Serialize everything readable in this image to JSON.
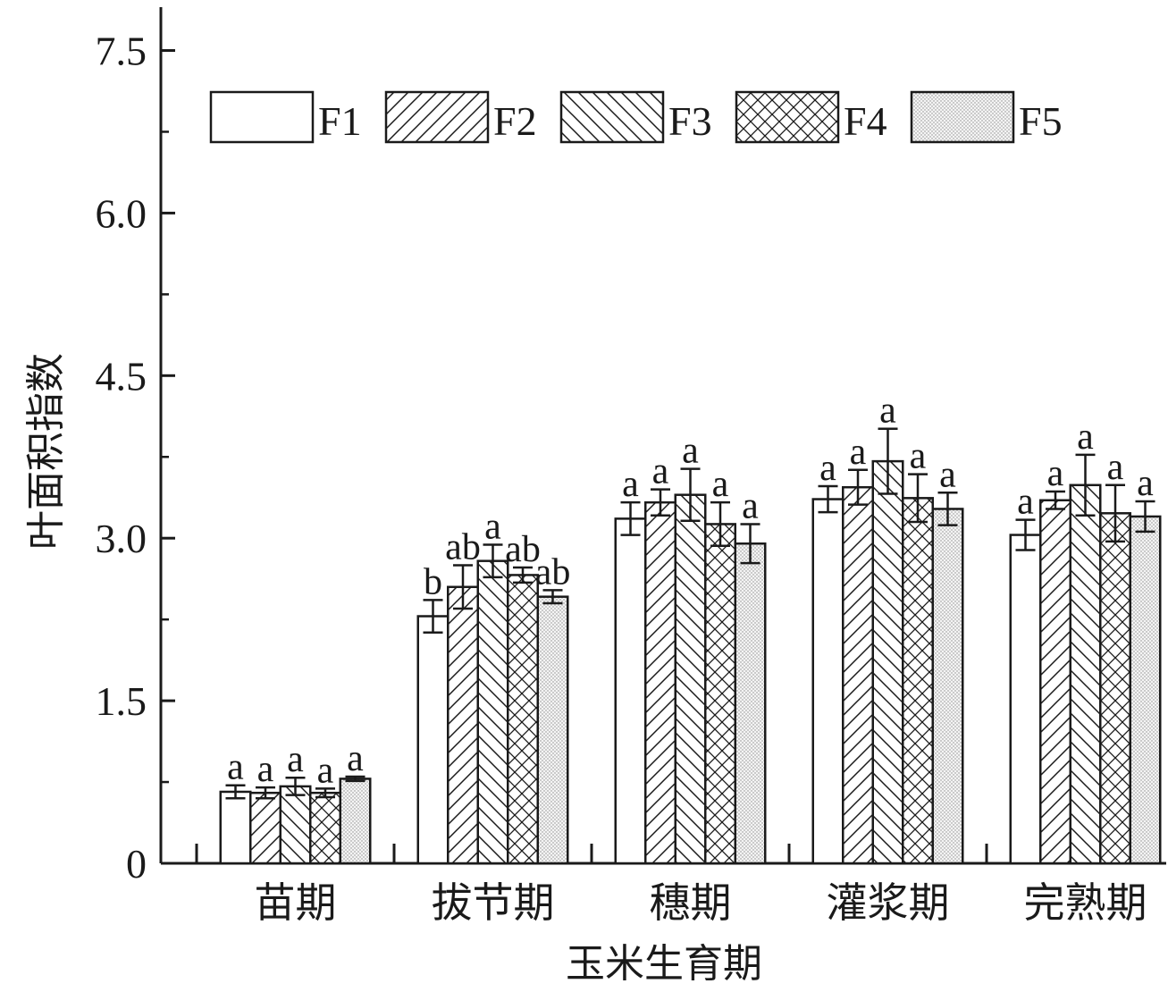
{
  "chart_data": {
    "type": "bar",
    "xlabel": "玉米生育期",
    "ylabel": "叶面积指数",
    "ylim": [
      0,
      7.9
    ],
    "yticks": [
      0,
      1.5,
      3.0,
      4.5,
      6.0,
      7.5
    ],
    "ytick_labels": [
      "0",
      "1.5",
      "3.0",
      "4.5",
      "6.0",
      "7.5"
    ],
    "grid": false,
    "legend_position": "top",
    "categories": [
      "苗期",
      "拔节期",
      "穗期",
      "灌浆期",
      "完熟期"
    ],
    "series": [
      {
        "name": "F1",
        "pattern": "none",
        "values": [
          0.66,
          2.28,
          3.18,
          3.36,
          3.03
        ],
        "errors": [
          0.06,
          0.15,
          0.15,
          0.12,
          0.14
        ],
        "labels": [
          "a",
          "b",
          "a",
          "a",
          "a"
        ]
      },
      {
        "name": "F2",
        "pattern": "forward-hatch",
        "values": [
          0.65,
          2.55,
          3.33,
          3.47,
          3.35
        ],
        "errors": [
          0.05,
          0.2,
          0.12,
          0.16,
          0.08
        ],
        "labels": [
          "a",
          "ab",
          "a",
          "a",
          "a"
        ]
      },
      {
        "name": "F3",
        "pattern": "back-hatch",
        "values": [
          0.71,
          2.79,
          3.4,
          3.71,
          3.49
        ],
        "errors": [
          0.08,
          0.15,
          0.24,
          0.3,
          0.28
        ],
        "labels": [
          "a",
          "a",
          "a",
          "a",
          "a"
        ]
      },
      {
        "name": "F4",
        "pattern": "cross-hatch",
        "values": [
          0.65,
          2.66,
          3.13,
          3.37,
          3.23
        ],
        "errors": [
          0.04,
          0.07,
          0.2,
          0.22,
          0.26
        ],
        "labels": [
          "a",
          "ab",
          "a",
          "a",
          "a"
        ]
      },
      {
        "name": "F5",
        "pattern": "dotted",
        "values": [
          0.78,
          2.46,
          2.95,
          3.27,
          3.2
        ],
        "errors": [
          0.02,
          0.06,
          0.18,
          0.15,
          0.14
        ],
        "labels": [
          "a",
          "ab",
          "a",
          "a",
          "a"
        ]
      }
    ]
  }
}
